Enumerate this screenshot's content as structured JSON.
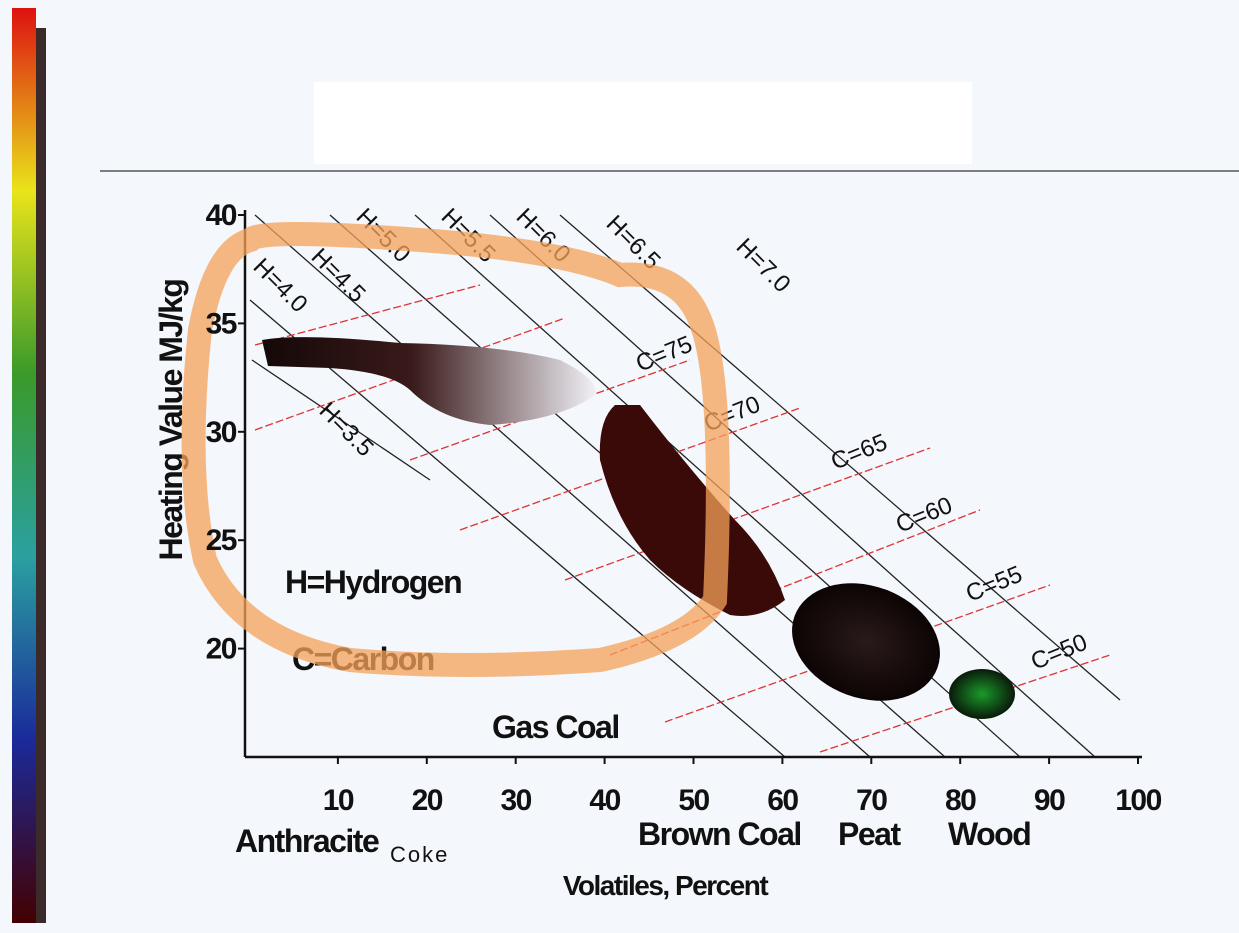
{
  "chart_data": {
    "type": "region",
    "ylabel": "Heating Value MJ/kg",
    "xlabel": "Volatiles, Percent",
    "xlim": [
      0,
      100
    ],
    "xticks": [
      10,
      20,
      30,
      40,
      50,
      60,
      70,
      80,
      90,
      100
    ],
    "ylim": [
      15,
      40
    ],
    "yticks": [
      20,
      25,
      30,
      35,
      40
    ],
    "fuels": [
      "Anthracite",
      "Coke",
      "Gas Coal",
      "Brown Coal",
      "Peat",
      "Wood"
    ],
    "legend": [
      "H=Hydrogen",
      "C=Carbon"
    ],
    "hydrogen_lines": [
      "H=3.5",
      "H=4.0",
      "H=4.5",
      "H=5.0",
      "H=5.5",
      "H=6.0",
      "H=6.5",
      "H=7.0"
    ],
    "carbon_lines": [
      "C=75",
      "C=70",
      "C=65",
      "C=60",
      "C=55",
      "C=50"
    ]
  }
}
